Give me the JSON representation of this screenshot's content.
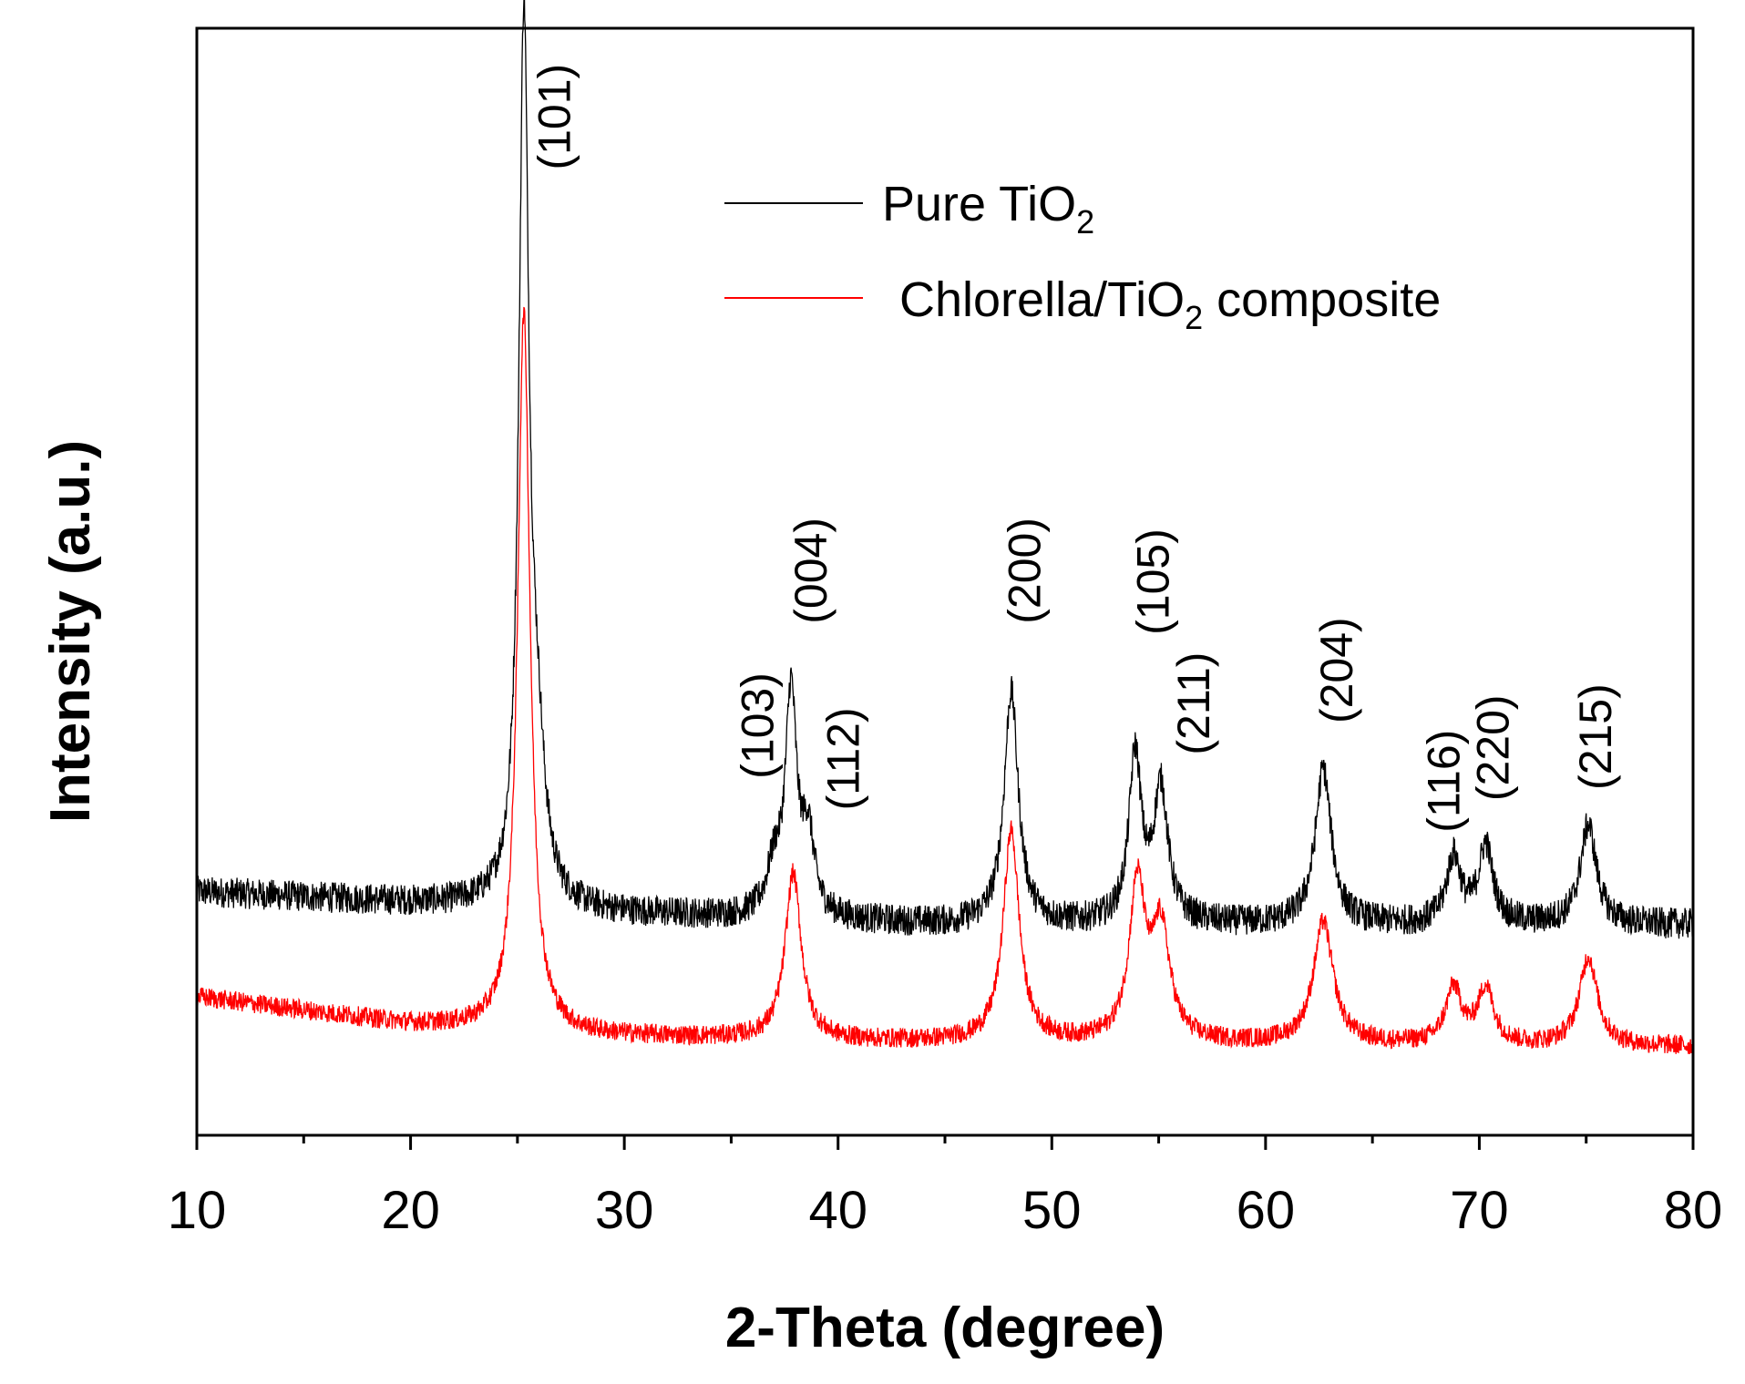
{
  "chart_data": {
    "type": "line",
    "title": "",
    "xlabel": "2-Theta (degree)",
    "ylabel": "Intensity (a.u.)",
    "xlim": [
      10,
      80
    ],
    "ylim": [
      0,
      100
    ],
    "xticks": [
      "10",
      "20",
      "30",
      "40",
      "50",
      "60",
      "70",
      "80"
    ],
    "yticks_visible": false,
    "legend_position": "top-right",
    "series": [
      {
        "name": "Pure TiO",
        "name_subscript": "2",
        "name_suffix": "",
        "color": "#000000",
        "baseline": [
          [
            10,
            22
          ],
          [
            20,
            21
          ],
          [
            30,
            20
          ],
          [
            45,
            19
          ],
          [
            80,
            19
          ]
        ],
        "noise": 1.4,
        "peaks": [
          {
            "x": 25.3,
            "h": 78,
            "w": 0.28
          },
          {
            "x": 25.9,
            "h": 12,
            "w": 0.45
          },
          {
            "x": 37.0,
            "h": 4,
            "w": 0.4
          },
          {
            "x": 37.8,
            "h": 20,
            "w": 0.32
          },
          {
            "x": 38.6,
            "h": 7,
            "w": 0.35
          },
          {
            "x": 48.1,
            "h": 21,
            "w": 0.4
          },
          {
            "x": 53.9,
            "h": 15,
            "w": 0.35
          },
          {
            "x": 55.1,
            "h": 12,
            "w": 0.4
          },
          {
            "x": 62.7,
            "h": 14,
            "w": 0.45
          },
          {
            "x": 68.8,
            "h": 6,
            "w": 0.4
          },
          {
            "x": 70.3,
            "h": 7,
            "w": 0.4
          },
          {
            "x": 75.1,
            "h": 9,
            "w": 0.45
          }
        ]
      },
      {
        "name": "Chlorella/TiO",
        "name_subscript": "2",
        "name_suffix": " composite",
        "color": "#ff0000",
        "baseline": [
          [
            10,
            12.5
          ],
          [
            20,
            10
          ],
          [
            28,
            9
          ],
          [
            40,
            8.5
          ],
          [
            80,
            8
          ]
        ],
        "noise": 0.9,
        "peaks": [
          {
            "x": 25.3,
            "h": 65,
            "w": 0.35
          },
          {
            "x": 37.9,
            "h": 15,
            "w": 0.45
          },
          {
            "x": 48.1,
            "h": 19,
            "w": 0.45
          },
          {
            "x": 54.0,
            "h": 14,
            "w": 0.45
          },
          {
            "x": 55.1,
            "h": 10,
            "w": 0.5
          },
          {
            "x": 62.7,
            "h": 11,
            "w": 0.55
          },
          {
            "x": 68.8,
            "h": 5,
            "w": 0.45
          },
          {
            "x": 70.3,
            "h": 5,
            "w": 0.45
          },
          {
            "x": 75.1,
            "h": 8,
            "w": 0.5
          }
        ]
      }
    ],
    "annotations": [
      {
        "text": "(101)",
        "x": 26.9,
        "y": 92
      },
      {
        "text": "(103)",
        "x": 36.4,
        "y": 37
      },
      {
        "text": "(004)",
        "x": 38.9,
        "y": 51
      },
      {
        "text": "(112)",
        "x": 40.4,
        "y": 34
      },
      {
        "text": "(200)",
        "x": 48.9,
        "y": 51
      },
      {
        "text": "(105)",
        "x": 54.9,
        "y": 50
      },
      {
        "text": "(211)",
        "x": 56.8,
        "y": 39
      },
      {
        "text": "(204)",
        "x": 63.5,
        "y": 42
      },
      {
        "text": "(116)",
        "x": 68.5,
        "y": 32
      },
      {
        "text": "(220)",
        "x": 70.8,
        "y": 35
      },
      {
        "text": "(215)",
        "x": 75.6,
        "y": 36
      }
    ]
  }
}
